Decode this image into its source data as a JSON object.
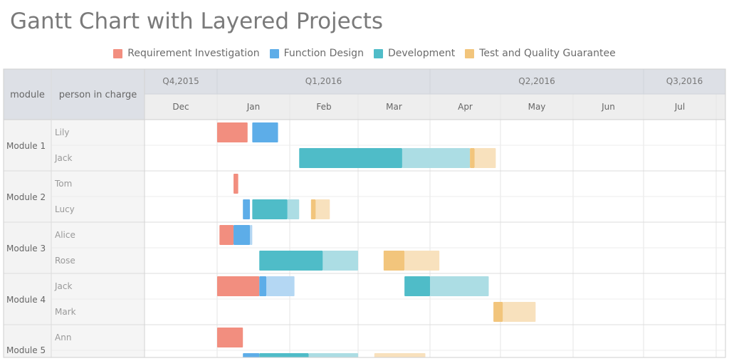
{
  "title": "Gantt Chart with Layered Projects",
  "legend": [
    {
      "label": "Requirement Investigation",
      "color": "#f28e7f"
    },
    {
      "label": "Function Design",
      "color": "#5dade8"
    },
    {
      "label": "Development",
      "color": "#4fbcc8"
    },
    {
      "label": "Test and Quality Guarantee",
      "color": "#f2c57c"
    }
  ],
  "headers": {
    "module": "module",
    "person": "person in charge"
  },
  "chart_data": {
    "type": "gantt",
    "title": "Gantt Chart with Layered Projects",
    "time_unit": "day",
    "time_origin": "2015-12-01",
    "quarters": [
      {
        "label": "Q4,2015",
        "start": 0,
        "end": 31
      },
      {
        "label": "Q1,2016",
        "start": 31,
        "end": 122
      },
      {
        "label": "Q2,2016",
        "start": 122,
        "end": 213
      },
      {
        "label": "Q3,2016",
        "start": 213,
        "end": 244
      }
    ],
    "months": [
      {
        "label": "Dec",
        "start": 0,
        "end": 31
      },
      {
        "label": "Jan",
        "start": 31,
        "end": 62
      },
      {
        "label": "Feb",
        "start": 62,
        "end": 91
      },
      {
        "label": "Mar",
        "start": 91,
        "end": 122
      },
      {
        "label": "Apr",
        "start": 122,
        "end": 152
      },
      {
        "label": "May",
        "start": 152,
        "end": 183
      },
      {
        "label": "Jun",
        "start": 183,
        "end": 213
      },
      {
        "label": "Jul",
        "start": 213,
        "end": 244
      }
    ],
    "phases": [
      "Requirement Investigation",
      "Function Design",
      "Development",
      "Test and Quality Guarantee"
    ],
    "phase_colors": [
      "#f28e7f",
      "#5dade8",
      "#4fbcc8",
      "#f2c57c"
    ],
    "phase_light_colors": [
      "#f9c9c1",
      "#b4d7f3",
      "#acdde4",
      "#f8e1bd"
    ],
    "modules": [
      {
        "name": "Module 1",
        "persons": [
          {
            "name": "Lily",
            "tasks": [
              {
                "phase": 0,
                "start": 31,
                "end": 44,
                "actual_end": 44
              },
              {
                "phase": 1,
                "start": 46,
                "end": 57,
                "actual_end": 57
              }
            ]
          },
          {
            "name": "Jack",
            "tasks": [
              {
                "phase": 2,
                "start": 66,
                "end": 110,
                "actual_end": 139
              },
              {
                "phase": 3,
                "start": 139,
                "end": 141,
                "actual_end": 150
              }
            ]
          }
        ]
      },
      {
        "name": "Module 2",
        "persons": [
          {
            "name": "Tom",
            "tasks": [
              {
                "phase": 0,
                "start": 38,
                "end": 40,
                "actual_end": 40
              }
            ]
          },
          {
            "name": "Lucy",
            "tasks": [
              {
                "phase": 1,
                "start": 42,
                "end": 45,
                "actual_end": 45
              },
              {
                "phase": 2,
                "start": 46,
                "end": 61,
                "actual_end": 66
              },
              {
                "phase": 3,
                "start": 71,
                "end": 73,
                "actual_end": 79
              }
            ]
          }
        ]
      },
      {
        "name": "Module 3",
        "persons": [
          {
            "name": "Alice",
            "tasks": [
              {
                "phase": 0,
                "start": 32,
                "end": 38,
                "actual_end": 38
              },
              {
                "phase": 1,
                "start": 38,
                "end": 45,
                "actual_end": 46
              }
            ]
          },
          {
            "name": "Rose",
            "tasks": [
              {
                "phase": 2,
                "start": 49,
                "end": 76,
                "actual_end": 91
              },
              {
                "phase": 3,
                "start": 102,
                "end": 111,
                "actual_end": 126
              }
            ]
          }
        ]
      },
      {
        "name": "Module 4",
        "persons": [
          {
            "name": "Jack",
            "tasks": [
              {
                "phase": 0,
                "start": 31,
                "end": 49,
                "actual_end": 49
              },
              {
                "phase": 1,
                "start": 49,
                "end": 52,
                "actual_end": 64
              },
              {
                "phase": 2,
                "start": 111,
                "end": 122,
                "actual_end": 147
              }
            ]
          },
          {
            "name": "Mark",
            "tasks": [
              {
                "phase": 3,
                "start": 149,
                "end": 153,
                "actual_end": 167
              }
            ]
          }
        ]
      },
      {
        "name": "Module 5",
        "persons": [
          {
            "name": "Ann",
            "tasks": [
              {
                "phase": 0,
                "start": 31,
                "end": 42,
                "actual_end": 42
              }
            ]
          },
          {
            "name": "",
            "tasks": [
              {
                "phase": 1,
                "start": 42,
                "end": 49,
                "actual_end": 49
              },
              {
                "phase": 2,
                "start": 49,
                "end": 70,
                "actual_end": 91
              },
              {
                "phase": 3,
                "start": 98,
                "end": 98,
                "actual_end": 120
              }
            ]
          }
        ]
      }
    ]
  }
}
